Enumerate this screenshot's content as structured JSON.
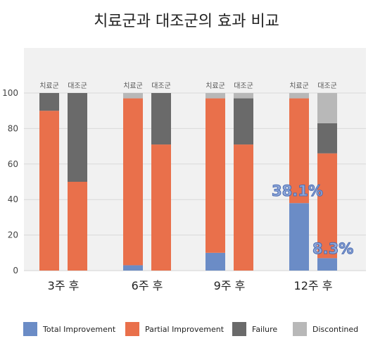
{
  "chart_data": {
    "type": "bar",
    "stacked": true,
    "title": "치료군과 대조군의 효과 비교",
    "categories": [
      "3주 후",
      "6주 후",
      "9주 후",
      "12주 후"
    ],
    "groups": [
      "치료군",
      "대조군"
    ],
    "ylim": [
      0,
      100
    ],
    "yticks": [
      0,
      20,
      40,
      60,
      80,
      100
    ],
    "grid": true,
    "legend_position": "bottom",
    "series": [
      {
        "name": "Total Improvement",
        "color": "#6b8cc6",
        "values": {
          "치료군": [
            0,
            3,
            10,
            38
          ],
          "대조군": [
            0,
            0,
            0,
            7
          ]
        }
      },
      {
        "name": "Partial Improvement",
        "color": "#e9704b",
        "values": {
          "치료군": [
            90,
            94,
            87,
            59
          ],
          "대조군": [
            50,
            71,
            71,
            59
          ]
        }
      },
      {
        "name": "Failure",
        "color": "#6a6a6a",
        "values": {
          "치료군": [
            10,
            0,
            0,
            0
          ],
          "대조군": [
            50,
            29,
            26,
            17
          ]
        }
      },
      {
        "name": "Discontined",
        "color": "#b8b8b8",
        "values": {
          "치료군": [
            0,
            3,
            3,
            3
          ],
          "대조군": [
            0,
            0,
            3,
            17
          ]
        }
      }
    ],
    "annotations": [
      "38.1%",
      "8.3%"
    ]
  }
}
